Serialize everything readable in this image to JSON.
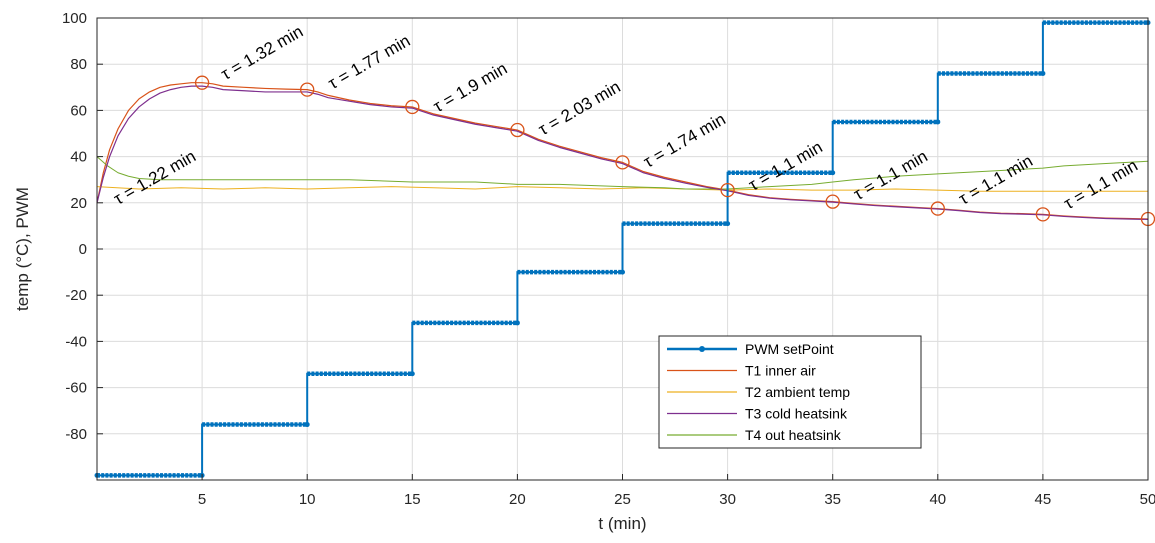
{
  "chart_data": {
    "type": "line",
    "title": "",
    "xlabel": "t (min)",
    "ylabel": "temp (°C), PWM",
    "xlim": [
      0,
      50
    ],
    "ylim": [
      -100,
      100
    ],
    "xticks": [
      5,
      10,
      15,
      20,
      25,
      30,
      35,
      40,
      45,
      50
    ],
    "yticks": [
      100,
      80,
      60,
      40,
      20,
      0,
      -20,
      -40,
      -60,
      -80
    ],
    "grid": true,
    "legend_position": "lower-right",
    "series": [
      {
        "name": "PWM setPoint",
        "color": "#0072bd",
        "style": "step-markers",
        "steps": [
          {
            "x0": 0,
            "x1": 5,
            "y": -98
          },
          {
            "x0": 5,
            "x1": 10,
            "y": -76
          },
          {
            "x0": 10,
            "x1": 15,
            "y": -54
          },
          {
            "x0": 15,
            "x1": 20,
            "y": -32
          },
          {
            "x0": 20,
            "x1": 25,
            "y": -10
          },
          {
            "x0": 25,
            "x1": 30,
            "y": 11
          },
          {
            "x0": 30,
            "x1": 35,
            "y": 33
          },
          {
            "x0": 35,
            "x1": 40,
            "y": 55
          },
          {
            "x0": 40,
            "x1": 45,
            "y": 76
          },
          {
            "x0": 45,
            "x1": 50,
            "y": 98
          }
        ]
      },
      {
        "name": "T1 inner air",
        "color": "#d95319",
        "x": [
          0,
          0.3,
          0.6,
          1,
          1.5,
          2,
          2.5,
          3,
          3.5,
          4,
          4.5,
          5,
          5.5,
          6,
          7,
          8,
          9,
          10,
          10.5,
          11,
          12,
          13,
          14,
          15,
          15.5,
          16,
          17,
          18,
          19,
          20,
          20.5,
          21,
          22,
          23,
          24,
          25,
          25.5,
          26,
          27,
          28,
          29,
          30,
          30.5,
          31,
          32,
          33,
          34,
          35,
          36,
          37,
          38,
          39,
          40,
          41,
          42,
          43,
          44,
          45,
          46,
          47,
          48,
          49,
          50
        ],
        "y": [
          20,
          33,
          43,
          52,
          60,
          65,
          68,
          70,
          71,
          71.5,
          72,
          72,
          71.5,
          70.5,
          70,
          69.5,
          69.2,
          69,
          68,
          66.5,
          64.5,
          63,
          62,
          61.5,
          60,
          58.5,
          56.5,
          54.5,
          53,
          51.5,
          49.5,
          47.5,
          44.5,
          42,
          39.5,
          37.5,
          35.5,
          33.5,
          31,
          29,
          27,
          25.5,
          24.5,
          23.5,
          22.2,
          21.5,
          21,
          20.5,
          19.7,
          19,
          18.5,
          18,
          17.5,
          16.8,
          16,
          15.5,
          15.3,
          15,
          14.3,
          13.8,
          13.4,
          13.2,
          13
        ]
      },
      {
        "name": "T2 ambient temp",
        "color": "#edb120",
        "x": [
          0,
          2,
          4,
          6,
          8,
          10,
          12,
          14,
          16,
          18,
          20,
          22,
          24,
          26,
          28,
          30,
          32,
          34,
          36,
          38,
          40,
          42,
          44,
          46,
          48,
          50
        ],
        "y": [
          27,
          26,
          26.5,
          26,
          26.5,
          26,
          26.5,
          27,
          26.5,
          26,
          27,
          26.5,
          26,
          26.5,
          26,
          25.5,
          26,
          25.5,
          25.5,
          26,
          25.5,
          25,
          25,
          25,
          25,
          25
        ]
      },
      {
        "name": "T3 cold heatsink",
        "color": "#7e2f8e",
        "x": [
          0,
          0.3,
          0.6,
          1,
          1.5,
          2,
          2.5,
          3,
          3.5,
          4,
          4.5,
          5,
          5.5,
          6,
          7,
          8,
          9,
          10,
          10.5,
          11,
          12,
          13,
          14,
          15,
          15.5,
          16,
          17,
          18,
          19,
          20,
          20.5,
          21,
          22,
          23,
          24,
          25,
          25.5,
          26,
          27,
          28,
          29,
          30,
          30.5,
          31,
          32,
          33,
          34,
          35,
          36,
          37,
          38,
          39,
          40,
          41,
          42,
          43,
          44,
          45,
          46,
          47,
          48,
          49,
          50
        ],
        "y": [
          20,
          31,
          40,
          49,
          56.5,
          61.5,
          65,
          67.5,
          69,
          70,
          70.5,
          70.5,
          70,
          69,
          68.5,
          68,
          68,
          68,
          67,
          65.5,
          64,
          62.5,
          61.5,
          61,
          59.5,
          58,
          56,
          54,
          52.5,
          51,
          49,
          47,
          44,
          41.5,
          39,
          37,
          35,
          33,
          30.5,
          28.5,
          26.7,
          25.2,
          24.2,
          23.2,
          22,
          21.3,
          20.8,
          20.3,
          19.5,
          18.8,
          18.3,
          17.8,
          17.3,
          16.6,
          15.8,
          15.3,
          15.1,
          14.8,
          14.1,
          13.6,
          13.2,
          13,
          12.8
        ]
      },
      {
        "name": "T4 out heatsink",
        "color": "#77ac30",
        "x": [
          0,
          0.5,
          1,
          1.5,
          2,
          3,
          4,
          5,
          7,
          10,
          12,
          15,
          18,
          20,
          22,
          25,
          27,
          28,
          30,
          32,
          34,
          35,
          36,
          38,
          40,
          42,
          44,
          45,
          46,
          48,
          50
        ],
        "y": [
          40,
          36,
          33,
          31.5,
          30.5,
          30,
          30,
          30,
          30,
          30,
          30,
          29,
          29,
          28,
          28,
          27,
          26.5,
          26,
          26,
          27,
          28,
          29,
          30,
          31.5,
          32.5,
          33.5,
          34.5,
          35,
          36,
          37,
          38
        ]
      }
    ],
    "markers": {
      "color": "#d95319",
      "points": [
        [
          5,
          72
        ],
        [
          10,
          69
        ],
        [
          15,
          61.5
        ],
        [
          20,
          51.5
        ],
        [
          25,
          37.5
        ],
        [
          30,
          25.5
        ],
        [
          35,
          20.5
        ],
        [
          40,
          17.5
        ],
        [
          45,
          15
        ],
        [
          50,
          13
        ]
      ]
    },
    "annotations": [
      {
        "text": "τ = 1.22 min",
        "x": 1.0,
        "y": 19
      },
      {
        "text": "τ = 1.32 min",
        "x": 6.1,
        "y": 73
      },
      {
        "text": "τ = 1.77 min",
        "x": 11.2,
        "y": 69
      },
      {
        "text": "τ = 1.9 min",
        "x": 16.2,
        "y": 59
      },
      {
        "text": "τ = 2.03 min",
        "x": 21.2,
        "y": 49
      },
      {
        "text": "τ = 1.74 min",
        "x": 26.2,
        "y": 35
      },
      {
        "text": "τ = 1.1 min",
        "x": 31.2,
        "y": 25
      },
      {
        "text": "τ = 1.1 min",
        "x": 36.2,
        "y": 21
      },
      {
        "text": "τ = 1.1 min",
        "x": 41.2,
        "y": 19
      },
      {
        "text": "τ = 1.1 min",
        "x": 46.2,
        "y": 17
      }
    ]
  }
}
